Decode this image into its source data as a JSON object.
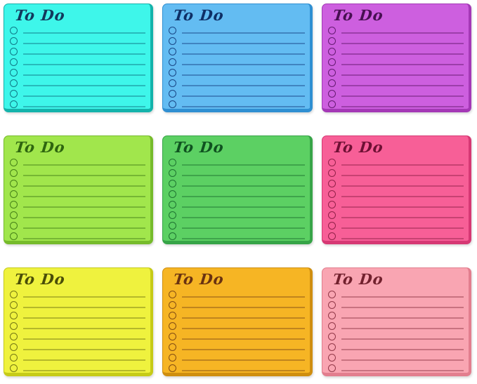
{
  "page": {
    "background": "#ffffff",
    "grid": {
      "columns": 3,
      "rows": 3
    }
  },
  "notes": [
    {
      "name": "cyan",
      "title": "To Do",
      "bg": "#3EF6EA",
      "edge": "#14B3AB",
      "ink": "#12395C",
      "line": "#0C6E7E",
      "lines": 8
    },
    {
      "name": "sky-blue",
      "title": "To Do",
      "bg": "#63BCF2",
      "edge": "#2F8FD2",
      "ink": "#0E2F66",
      "line": "#143E7E",
      "lines": 8
    },
    {
      "name": "orchid",
      "title": "To Do",
      "bg": "#CD5FDF",
      "edge": "#A438B6",
      "ink": "#470F52",
      "line": "#5C1668",
      "lines": 8
    },
    {
      "name": "lime-green",
      "title": "To Do",
      "bg": "#A1E64C",
      "edge": "#76BB2B",
      "ink": "#2E660F",
      "line": "#3E7A14",
      "lines": 8
    },
    {
      "name": "green",
      "title": "To Do",
      "bg": "#5CD063",
      "edge": "#36A447",
      "ink": "#0F5220",
      "line": "#1A6B2C",
      "lines": 8
    },
    {
      "name": "hot-pink",
      "title": "To Do",
      "bg": "#F75F97",
      "edge": "#D63874",
      "ink": "#6E1034",
      "line": "#8A1C42",
      "lines": 8
    },
    {
      "name": "yellow",
      "title": "To Do",
      "bg": "#EFF23E",
      "edge": "#C6CB18",
      "ink": "#4A4D08",
      "line": "#6B6E10",
      "lines": 8
    },
    {
      "name": "amber",
      "title": "To Do",
      "bg": "#F6B524",
      "edge": "#CF8E10",
      "ink": "#693211",
      "line": "#7A4414",
      "lines": 8
    },
    {
      "name": "light-pink",
      "title": "To Do",
      "bg": "#F9A5B2",
      "edge": "#E27E8E",
      "ink": "#72212E",
      "line": "#8A3040",
      "lines": 8
    }
  ]
}
